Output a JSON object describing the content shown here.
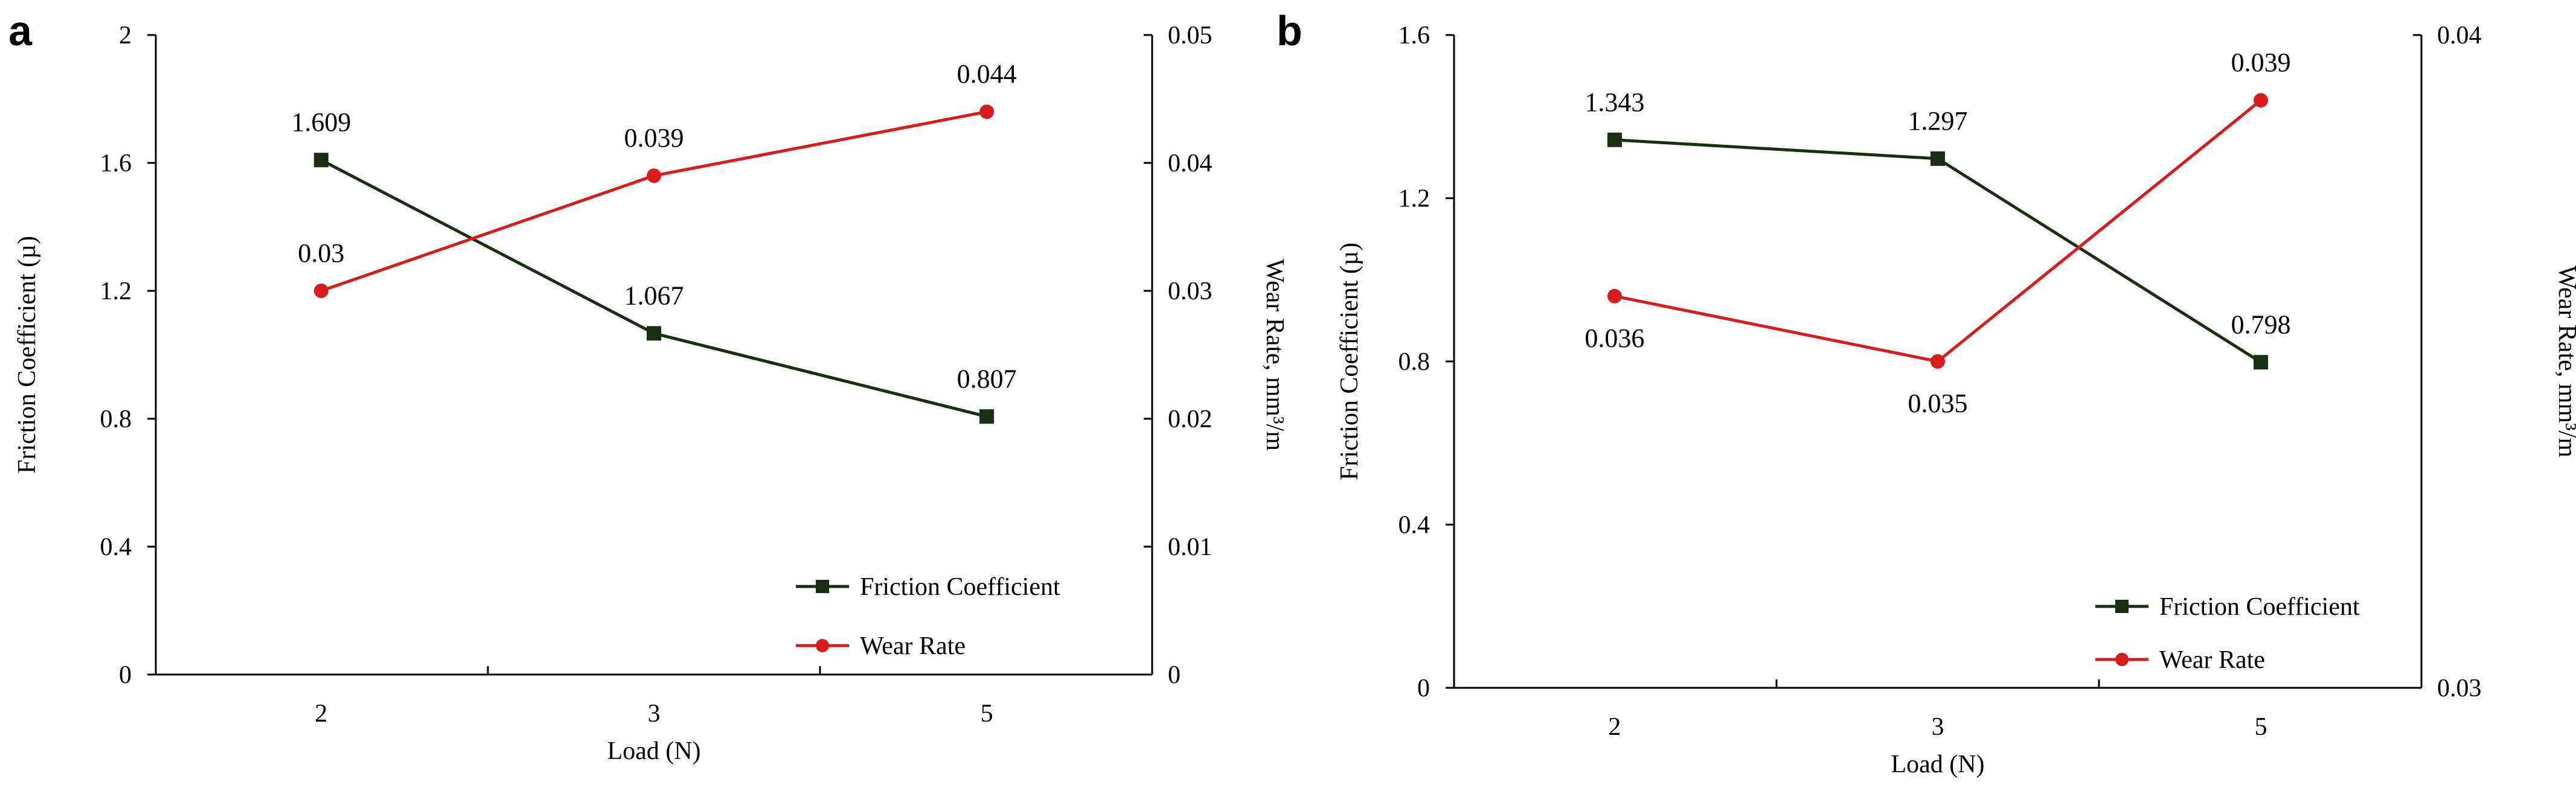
{
  "colors": {
    "friction": "#1a2e14",
    "wear": "#d81c1c",
    "axis": "#000000"
  },
  "chart_data": [
    {
      "type": "line",
      "panel": "a",
      "xlabel": "Load (N)",
      "ylabel_left": "Friction Coefficient (µ)",
      "ylabel_right": "Wear Rate, mm³/m",
      "categories": [
        "2",
        "3",
        "5"
      ],
      "left_ylim": [
        0,
        2
      ],
      "left_ticks": [
        "0",
        "0.4",
        "0.8",
        "1.2",
        "1.6",
        "2"
      ],
      "right_ylim": [
        0,
        0.05
      ],
      "right_ticks": [
        "0",
        "0.01",
        "0.02",
        "0.03",
        "0.04",
        "0.05"
      ],
      "legend_position": "bottom-right",
      "series": [
        {
          "name": "Friction Coefficient",
          "axis": "left",
          "values": [
            1.609,
            1.067,
            0.807
          ],
          "labels": [
            "1.609",
            "1.067",
            "0.807"
          ],
          "marker": "square"
        },
        {
          "name": "Wear Rate",
          "axis": "right",
          "values": [
            0.03,
            0.039,
            0.044
          ],
          "labels": [
            "0.03",
            "0.039",
            "0.044"
          ],
          "marker": "circle"
        }
      ]
    },
    {
      "type": "line",
      "panel": "b",
      "xlabel": "Load (N)",
      "ylabel_left": "Friction Coefficient (µ)",
      "ylabel_right": "Wear Rate, mm³/m",
      "categories": [
        "2",
        "3",
        "5"
      ],
      "left_ylim": [
        0,
        1.6
      ],
      "left_ticks": [
        "0",
        "0.4",
        "0.8",
        "1.2",
        "1.6"
      ],
      "right_ylim": [
        0.03,
        0.04
      ],
      "right_ticks": [
        "0.03",
        "0.04"
      ],
      "legend_position": "bottom-right",
      "series": [
        {
          "name": "Friction Coefficient",
          "axis": "left",
          "values": [
            1.343,
            1.297,
            0.798
          ],
          "labels": [
            "1.343",
            "1.297",
            "0.798"
          ],
          "marker": "square"
        },
        {
          "name": "Wear Rate",
          "axis": "right",
          "values": [
            0.036,
            0.035,
            0.039
          ],
          "labels": [
            "0.036",
            "0.035",
            "0.039"
          ],
          "marker": "circle"
        }
      ]
    }
  ]
}
